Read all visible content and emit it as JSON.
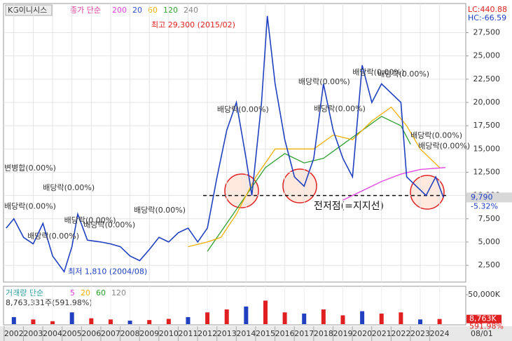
{
  "chart_data": {
    "type": "line",
    "title": "KG이니시스",
    "ma_label": "종가 단순",
    "ma_periods": [
      {
        "label": "200",
        "color": "#e040e0"
      },
      {
        "label": "20",
        "color": "#3050d0"
      },
      {
        "label": "60",
        "color": "#f0b000"
      },
      {
        "label": "120",
        "color": "#30a030"
      },
      {
        "label": "240",
        "color": "#888888"
      }
    ],
    "lc_label": "LC:440.88",
    "hc_label": "HC:-66.59",
    "xlim": [
      2001.5,
      2025.1
    ],
    "xticks": [
      2002,
      2003,
      2004,
      2005,
      2006,
      2007,
      2008,
      2009,
      2010,
      2011,
      2012,
      2013,
      2014,
      2015,
      2016,
      2017,
      2018,
      2019,
      2020,
      2021,
      2022,
      2023,
      2024
    ],
    "ylim": [
      1000,
      29500
    ],
    "yticks": [
      {
        "value": 2500,
        "label": "2,500"
      },
      {
        "value": 5000,
        "label": "5,000"
      },
      {
        "value": 7500,
        "label": "7,500"
      },
      {
        "value": 10000,
        "label": "10,000"
      },
      {
        "value": 12500,
        "label": "12,500"
      },
      {
        "value": 15000,
        "label": "15,000"
      },
      {
        "value": 17500,
        "label": "17,500"
      },
      {
        "value": 20000,
        "label": "20,000"
      },
      {
        "value": 22500,
        "label": "22,500"
      },
      {
        "value": 25000,
        "label": "25,000"
      },
      {
        "value": 27500,
        "label": "27,500"
      }
    ],
    "grid": true,
    "series": [
      {
        "name": "종가",
        "color": "#2040c0",
        "x": [
          2001.6,
          2002,
          2002.5,
          2003,
          2003.5,
          2004,
          2004.6,
          2005,
          2005.3,
          2005.8,
          2006.5,
          2007,
          2007.5,
          2008,
          2008.5,
          2009,
          2009.5,
          2010,
          2010.5,
          2011,
          2011.5,
          2012,
          2012.5,
          2013,
          2013.5,
          2014,
          2014.3,
          2014.8,
          2015.1,
          2015.5,
          2016,
          2016.5,
          2017,
          2017.5,
          2018,
          2018.5,
          2019,
          2019.5,
          2020,
          2020.5,
          2021,
          2021.5,
          2022,
          2022.3,
          2022.8,
          2023.3,
          2023.8,
          2024.2
        ],
        "values": [
          6500,
          7500,
          5500,
          4800,
          7000,
          3500,
          1810,
          4500,
          8000,
          5200,
          5000,
          4800,
          4500,
          3500,
          3000,
          4200,
          5500,
          5000,
          6000,
          6500,
          5000,
          6500,
          12000,
          17000,
          20000,
          14000,
          10000,
          20000,
          29300,
          22000,
          16000,
          12000,
          11000,
          14000,
          22000,
          17000,
          14000,
          12000,
          24000,
          20000,
          22000,
          21000,
          20000,
          12000,
          11000,
          10000,
          12000,
          9790
        ]
      },
      {
        "name": "60",
        "color": "#f0b000",
        "x": [
          2011,
          2012,
          2012.7,
          2013.5,
          2014.5,
          2015.5,
          2016.5,
          2017.5,
          2018.5,
          2019.5,
          2020.5,
          2021.5,
          2022.3,
          2023,
          2024
        ],
        "values": [
          4500,
          5000,
          5500,
          8000,
          12000,
          15000,
          15000,
          15000,
          16500,
          16000,
          18000,
          19500,
          17500,
          15000,
          13000
        ]
      },
      {
        "name": "120",
        "color": "#30a030",
        "x": [
          2012,
          2013,
          2014,
          2015,
          2016,
          2017,
          2018,
          2019,
          2020,
          2021,
          2022,
          2022.5
        ],
        "values": [
          4000,
          7000,
          10000,
          13000,
          14500,
          13500,
          14000,
          15500,
          17000,
          18500,
          17500,
          15500
        ]
      },
      {
        "name": "240",
        "color": "#e040e0",
        "x": [
          2019,
          2020,
          2021,
          2022,
          2023,
          2024.3
        ],
        "values": [
          9500,
          10500,
          11500,
          12300,
          12800,
          13000
        ]
      }
    ],
    "last_price": {
      "value": 9790,
      "label": "9,790"
    },
    "change_label": "-5.32%",
    "support_level": 10000,
    "support_label": "전저점(=지지선)",
    "annotations": [
      {
        "text": "최고 29,300 (2015/02)",
        "x": 2009.1,
        "y": 28300,
        "color": "#e02020"
      },
      {
        "text": "최저 1,810 (2004/08)",
        "x": 2004.8,
        "y": 1810,
        "color": "#2040c0"
      },
      {
        "text": "변병합(0.00%)",
        "x": 2001.5,
        "y": 12900,
        "color": "#333"
      },
      {
        "text": "배당락(0.00%)",
        "x": 2003.5,
        "y": 10800,
        "color": "#333"
      },
      {
        "text": "배당락(0.00%)",
        "x": 2001.5,
        "y": 8800,
        "color": "#333"
      },
      {
        "text": "배당락(0.00%)",
        "x": 2002.7,
        "y": 5600,
        "color": "#333"
      },
      {
        "text": "배당락(0.00%)",
        "x": 2004.6,
        "y": 7300,
        "color": "#333"
      },
      {
        "text": "배당락(0.00%)",
        "x": 2005.6,
        "y": 6800,
        "color": "#333"
      },
      {
        "text": "배당락(0.00%)",
        "x": 2008.2,
        "y": 8400,
        "color": "#333"
      },
      {
        "text": "배당락(0.00%)",
        "x": 2012.5,
        "y": 19200,
        "color": "#333"
      },
      {
        "text": "배당락(0.00%)",
        "x": 2016.7,
        "y": 22200,
        "color": "#333"
      },
      {
        "text": "배당락(0.00%)",
        "x": 2017.5,
        "y": 19300,
        "color": "#333"
      },
      {
        "text": "배당락(0.00%)",
        "x": 2019.5,
        "y": 23200,
        "color": "#333"
      },
      {
        "text": "배당락(0.00%)",
        "x": 2020.8,
        "y": 23000,
        "color": "#333"
      },
      {
        "text": "배당락(0.00%)",
        "x": 2022.5,
        "y": 16400,
        "color": "#333"
      },
      {
        "text": "배당락(0.00%)",
        "x": 2022.9,
        "y": 15300,
        "color": "#333"
      }
    ],
    "volume": {
      "title": "거래량 단순",
      "periods": [
        {
          "label": "5",
          "color": "#e040e0"
        },
        {
          "label": "20",
          "color": "#f0b000"
        },
        {
          "label": "60",
          "color": "#30a030"
        },
        {
          "label": "120",
          "color": "#888888"
        }
      ],
      "summary": "8,763,331주(591.98%)",
      "ylim": [
        0,
        62000
      ],
      "yticks": [
        {
          "value": 50000,
          "label": "50,000K"
        }
      ],
      "color": "#e02020",
      "x": [
        2002,
        2003,
        2004,
        2005,
        2006,
        2007,
        2008,
        2009,
        2010,
        2011,
        2012,
        2013,
        2014,
        2015,
        2016,
        2017,
        2018,
        2019,
        2020,
        2021,
        2022,
        2023,
        2024
      ],
      "values": [
        12000,
        8000,
        5000,
        20000,
        10000,
        8000,
        6000,
        7000,
        9000,
        12000,
        20000,
        25000,
        30000,
        40000,
        20000,
        18000,
        25000,
        15000,
        22000,
        18000,
        20000,
        8000,
        8763
      ],
      "last": {
        "value": 8763,
        "label": "8,763K"
      },
      "last_pct": "591.98%"
    },
    "date_label": "08/01"
  }
}
